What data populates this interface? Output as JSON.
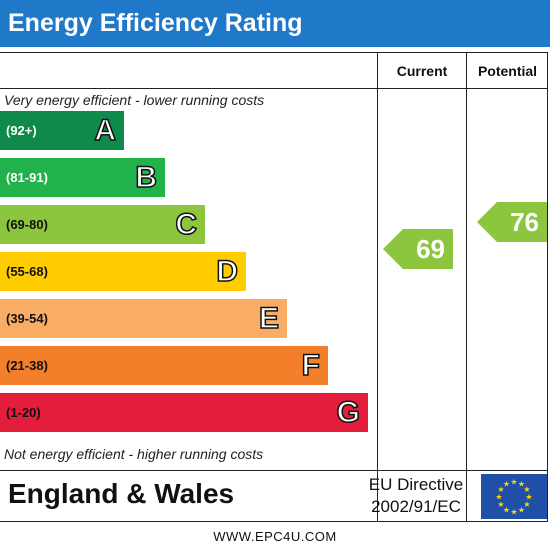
{
  "chart_data": {
    "type": "bar",
    "title": "Energy Efficiency Rating",
    "columns": [
      "Current",
      "Potential"
    ],
    "top_note": "Very energy efficient - lower running costs",
    "bottom_note": "Not energy efficient - higher running costs",
    "bands": [
      {
        "range": "(92+)",
        "letter": "A",
        "min": 92,
        "max": 100,
        "color": "#0f8a4a"
      },
      {
        "range": "(81-91)",
        "letter": "B",
        "min": 81,
        "max": 91,
        "color": "#21b24b"
      },
      {
        "range": "(69-80)",
        "letter": "C",
        "min": 69,
        "max": 80,
        "color": "#8cc63e"
      },
      {
        "range": "(55-68)",
        "letter": "D",
        "min": 55,
        "max": 68,
        "color": "#ffcc00"
      },
      {
        "range": "(39-54)",
        "letter": "E",
        "min": 39,
        "max": 54,
        "color": "#f9ac64"
      },
      {
        "range": "(21-38)",
        "letter": "F",
        "min": 21,
        "max": 38,
        "color": "#f37f2a"
      },
      {
        "range": "(1-20)",
        "letter": "G",
        "min": 1,
        "max": 20,
        "color": "#e31d3c"
      }
    ],
    "current": {
      "value": 69,
      "band": "C",
      "color": "#8cc63e"
    },
    "potential": {
      "value": 76,
      "band": "C",
      "color": "#8cc63e"
    }
  },
  "footer": {
    "region": "England & Wales",
    "directive_line1": "EU Directive",
    "directive_line2": "2002/91/EC",
    "flag_icon": "eu-flag-icon",
    "website": "WWW.EPC4U.COM"
  }
}
